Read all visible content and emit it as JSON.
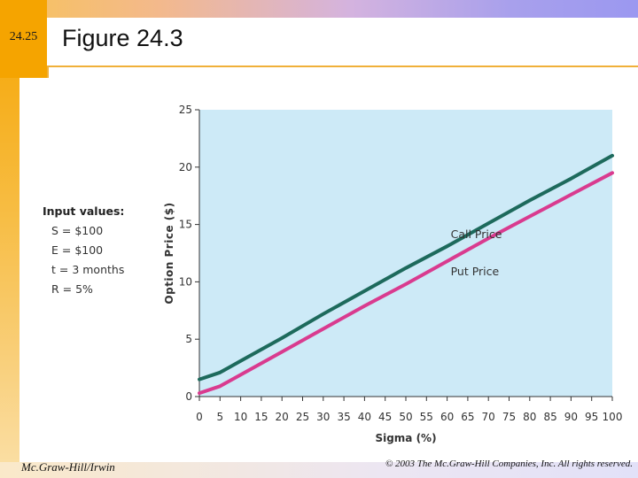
{
  "slide": {
    "number": "24.25",
    "title": "Figure 24.3",
    "footer_left": "Mc.Graw-Hill/Irwin",
    "footer_right": "© 2003 The Mc.Graw-Hill Companies, Inc. All rights reserved."
  },
  "inputs": {
    "header": "Input values:",
    "items": [
      "S = $100",
      "E = $100",
      "t = 3 months",
      "R = 5%"
    ]
  },
  "colors": {
    "plot_bg": "#cdeaf7",
    "call": "#1d6a5c",
    "put": "#d93b8f",
    "axis": "#333333"
  },
  "chart_data": {
    "type": "line",
    "title": "",
    "xlabel": "Sigma (%)",
    "ylabel": "Option Price ($)",
    "xlim": [
      0,
      100
    ],
    "ylim": [
      0,
      25
    ],
    "xticks": [
      "0",
      "5",
      "10",
      "15",
      "20",
      "25",
      "30",
      "35",
      "40",
      "45",
      "50",
      "55",
      "60",
      "65",
      "70",
      "75",
      "80",
      "85",
      "90",
      "95",
      "100"
    ],
    "yticks": [
      "0",
      "5",
      "10",
      "15",
      "20",
      "25"
    ],
    "series": [
      {
        "name": "Call Price",
        "x": [
          0,
          5,
          10,
          20,
          30,
          40,
          50,
          60,
          70,
          80,
          90,
          100
        ],
        "values": [
          1.5,
          2.1,
          3.1,
          5.1,
          7.2,
          9.2,
          11.2,
          13.1,
          15.1,
          17.1,
          19.0,
          21.0
        ]
      },
      {
        "name": "Put Price",
        "x": [
          0,
          5,
          10,
          20,
          30,
          40,
          50,
          60,
          70,
          80,
          90,
          100
        ],
        "values": [
          0.3,
          0.9,
          1.9,
          3.9,
          5.9,
          7.9,
          9.8,
          11.8,
          13.8,
          15.7,
          17.6,
          19.5
        ]
      }
    ],
    "grid": false,
    "legend": "inline labels"
  }
}
